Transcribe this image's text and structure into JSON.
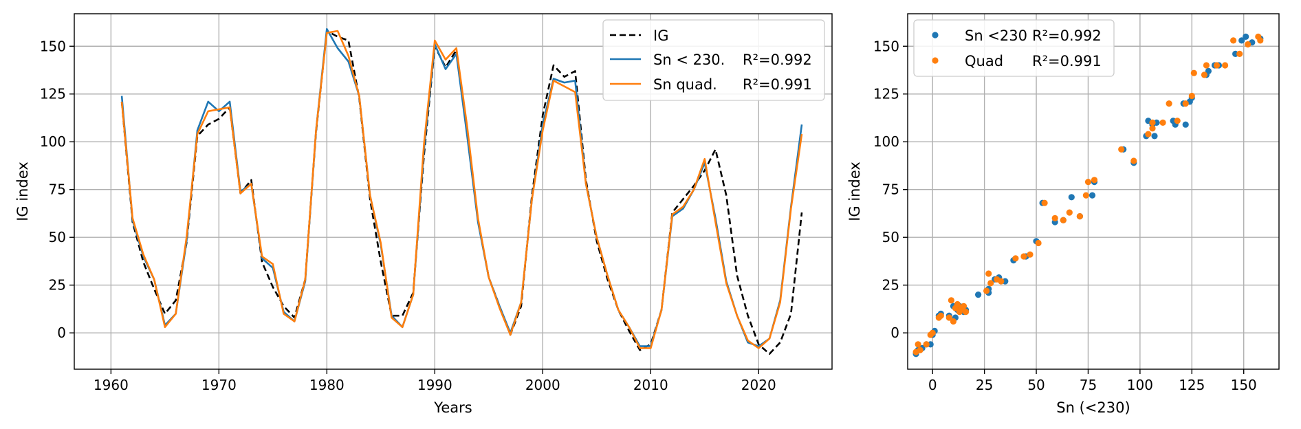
{
  "chart_data": [
    {
      "type": "line",
      "xlabel": "Years",
      "ylabel": "IG index",
      "xlim": [
        1956.6,
        2026.8
      ],
      "ylim": [
        -19,
        167
      ],
      "xticks": [
        1960,
        1970,
        1980,
        1990,
        2000,
        2010,
        2020
      ],
      "yticks": [
        0,
        25,
        50,
        75,
        100,
        125,
        150
      ],
      "grid": true,
      "legend_position": "top-right",
      "x": [
        1961,
        1962,
        1963,
        1964,
        1965,
        1966,
        1967,
        1968,
        1969,
        1970,
        1971,
        1972,
        1973,
        1974,
        1975,
        1976,
        1977,
        1978,
        1979,
        1980,
        1981,
        1982,
        1983,
        1984,
        1985,
        1986,
        1987,
        1988,
        1989,
        1990,
        1991,
        1992,
        1993,
        1994,
        1995,
        1996,
        1997,
        1998,
        1999,
        2000,
        2001,
        2002,
        2003,
        2004,
        2005,
        2006,
        2007,
        2008,
        2009,
        2010,
        2011,
        2012,
        2013,
        2014,
        2015,
        2016,
        2017,
        2018,
        2019,
        2020,
        2021,
        2022,
        2023,
        2024
      ],
      "series": [
        {
          "name": "IG",
          "style": "dashed",
          "color": "#000000",
          "values": [
            121,
            58,
            37,
            23,
            10,
            17,
            47,
            103,
            109,
            112,
            118,
            73,
            80,
            37,
            24,
            14,
            8,
            28,
            105,
            158,
            155,
            153,
            123,
            70,
            37,
            9,
            9,
            21,
            93,
            150,
            139,
            148,
            104,
            59,
            29,
            14,
            -1,
            14,
            72,
            114,
            140,
            134,
            137,
            80,
            48,
            28,
            12,
            1,
            -9,
            -6,
            12,
            63,
            70,
            77,
            85,
            96,
            72,
            30,
            9,
            -6,
            -11,
            -5,
            10,
            63
          ]
        },
        {
          "name": "Sn < 230.",
          "r2_label": "R²=0.992",
          "style": "solid",
          "color": "#1f77b4",
          "values": [
            124,
            59,
            40,
            28,
            4,
            10,
            48,
            106,
            121,
            116,
            121,
            74,
            78,
            39,
            34,
            11,
            6,
            27,
            106,
            159,
            149,
            142,
            124,
            72,
            46,
            9,
            3,
            20,
            96,
            151,
            138,
            146,
            103,
            58,
            29,
            14,
            0,
            16,
            70,
            109,
            133,
            131,
            132,
            78,
            50,
            30,
            12,
            3,
            -7,
            -7,
            12,
            61,
            65,
            75,
            89,
            60,
            27,
            9,
            -5,
            -7,
            -3,
            17,
            66,
            109
          ]
        },
        {
          "name": "Sn quad.",
          "r2_label": "R²=0.991",
          "style": "solid",
          "color": "#ff7f0e",
          "values": [
            121,
            60,
            41,
            28,
            3,
            10,
            50,
            104,
            116,
            117,
            118,
            73,
            78,
            40,
            36,
            10,
            6,
            28,
            106,
            157,
            158,
            145,
            124,
            72,
            47,
            8,
            3,
            20,
            99,
            153,
            143,
            149,
            108,
            60,
            29,
            13,
            -1,
            16,
            70,
            106,
            132,
            129,
            126,
            78,
            50,
            30,
            12,
            3,
            -8,
            -8,
            12,
            62,
            66,
            75,
            91,
            58,
            26,
            9,
            -4,
            -8,
            -3,
            16,
            65,
            104
          ]
        }
      ]
    },
    {
      "type": "scatter",
      "xlabel": "Sn (<230)",
      "ylabel": "IG index",
      "xlim": [
        -12,
        167
      ],
      "ylim": [
        -19,
        167
      ],
      "xticks": [
        0,
        25,
        50,
        75,
        100,
        125,
        150
      ],
      "yticks": [
        0,
        25,
        50,
        75,
        100,
        125,
        150
      ],
      "grid": true,
      "legend_position": "top-left",
      "series": [
        {
          "name": "Sn <230",
          "r2_label": "R²=0.992",
          "color": "#1f77b4",
          "points": [
            [
              -8,
              -11
            ],
            [
              -7,
              -9
            ],
            [
              -5,
              -8
            ],
            [
              -3,
              -6
            ],
            [
              -1,
              -6
            ],
            [
              0,
              -1
            ],
            [
              1,
              1
            ],
            [
              3,
              9
            ],
            [
              4,
              10
            ],
            [
              8,
              9
            ],
            [
              10,
              14
            ],
            [
              11,
              8
            ],
            [
              12,
              12
            ],
            [
              13,
              14
            ],
            [
              15,
              11
            ],
            [
              16,
              12
            ],
            [
              22,
              20
            ],
            [
              27,
              21
            ],
            [
              27,
              23
            ],
            [
              30,
              28
            ],
            [
              32,
              29
            ],
            [
              35,
              27
            ],
            [
              39,
              38
            ],
            [
              45,
              40
            ],
            [
              50,
              48
            ],
            [
              53,
              68
            ],
            [
              59,
              58
            ],
            [
              63,
              59
            ],
            [
              67,
              71
            ],
            [
              71,
              61
            ],
            [
              77,
              72
            ],
            [
              78,
              79
            ],
            [
              92,
              96
            ],
            [
              97,
              89
            ],
            [
              103,
              103
            ],
            [
              104,
              111
            ],
            [
              106,
              109
            ],
            [
              107,
              103
            ],
            [
              108,
              110
            ],
            [
              116,
              111
            ],
            [
              117,
              109
            ],
            [
              121,
              120
            ],
            [
              122,
              109
            ],
            [
              124,
              121
            ],
            [
              125,
              123
            ],
            [
              132,
              135
            ],
            [
              133,
              137
            ],
            [
              136,
              140
            ],
            [
              138,
              140
            ],
            [
              146,
              146
            ],
            [
              149,
              153
            ],
            [
              151,
              155
            ],
            [
              154,
              152
            ],
            [
              158,
              154
            ]
          ]
        },
        {
          "name": "Quad",
          "r2_label": "R²=0.991",
          "color": "#ff7f0e",
          "points": [
            [
              -8,
              -10
            ],
            [
              -6,
              -9
            ],
            [
              -7,
              -6
            ],
            [
              -3,
              -6
            ],
            [
              -1,
              -1
            ],
            [
              0,
              0
            ],
            [
              3,
              8
            ],
            [
              4,
              9
            ],
            [
              8,
              8
            ],
            [
              9,
              17
            ],
            [
              10,
              6
            ],
            [
              11,
              13
            ],
            [
              12,
              15
            ],
            [
              13,
              11
            ],
            [
              14,
              13
            ],
            [
              15,
              14
            ],
            [
              16,
              11
            ],
            [
              26,
              22
            ],
            [
              27,
              31
            ],
            [
              28,
              26
            ],
            [
              31,
              28
            ],
            [
              33,
              27
            ],
            [
              40,
              39
            ],
            [
              44,
              40
            ],
            [
              47,
              41
            ],
            [
              51,
              47
            ],
            [
              54,
              68
            ],
            [
              59,
              60
            ],
            [
              63,
              59
            ],
            [
              66,
              63
            ],
            [
              71,
              61
            ],
            [
              74,
              72
            ],
            [
              75,
              79
            ],
            [
              78,
              80
            ],
            [
              91,
              96
            ],
            [
              97,
              90
            ],
            [
              104,
              104
            ],
            [
              106,
              107
            ],
            [
              106,
              110
            ],
            [
              111,
              110
            ],
            [
              114,
              120
            ],
            [
              118,
              111
            ],
            [
              122,
              120
            ],
            [
              125,
              124
            ],
            [
              126,
              136
            ],
            [
              131,
              135
            ],
            [
              132,
              140
            ],
            [
              137,
              140
            ],
            [
              141,
              140
            ],
            [
              145,
              153
            ],
            [
              148,
              146
            ],
            [
              152,
              151
            ],
            [
              157,
              155
            ],
            [
              158,
              153
            ]
          ]
        }
      ]
    }
  ]
}
